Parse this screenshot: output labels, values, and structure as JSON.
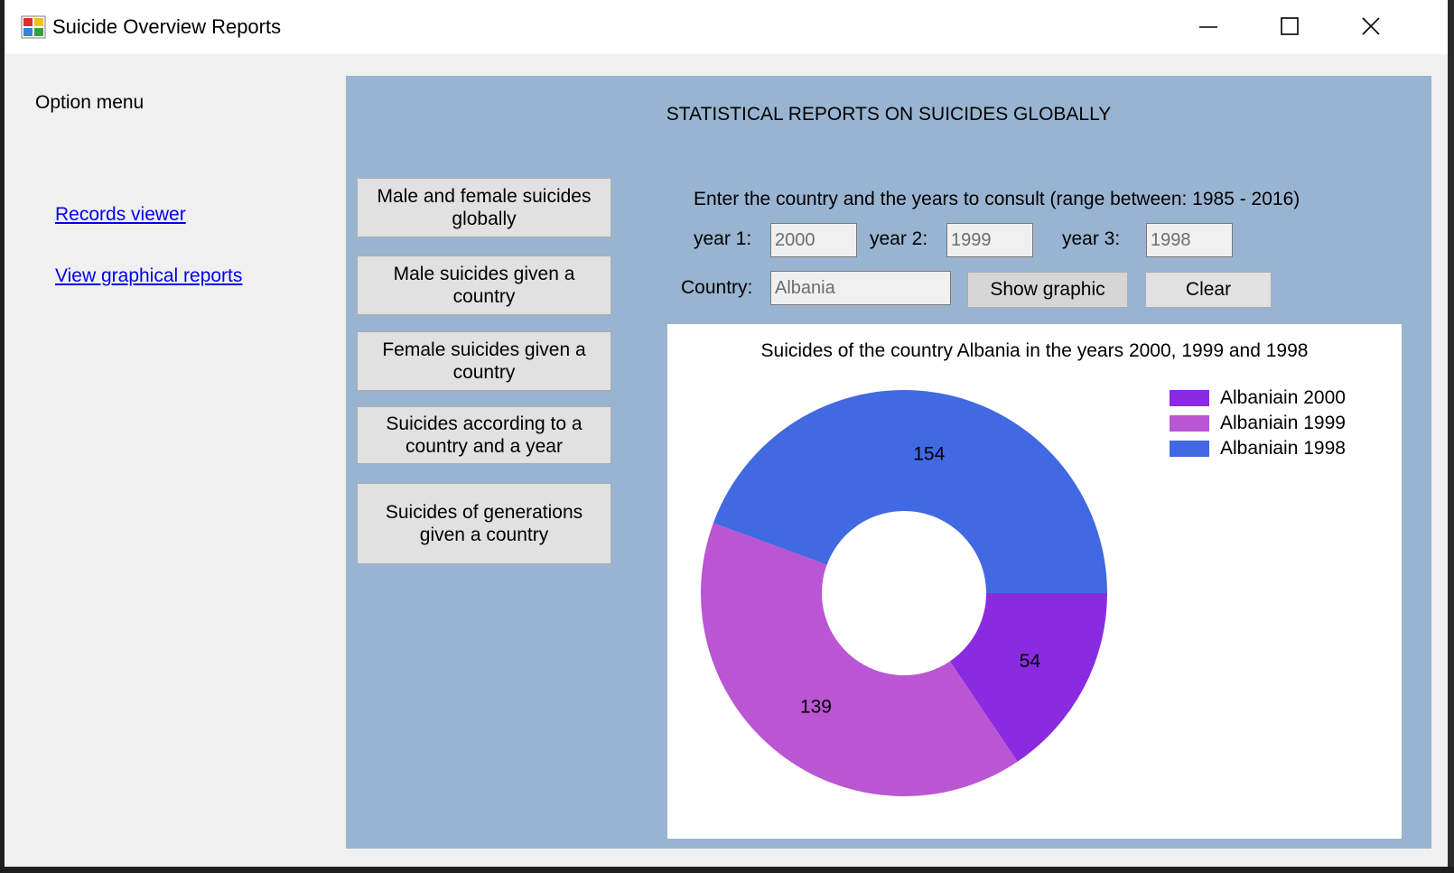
{
  "window": {
    "title": "Suicide Overview Reports"
  },
  "sidebar": {
    "heading": "Option menu",
    "links": [
      {
        "label": "Records viewer"
      },
      {
        "label": "View graphical reports"
      }
    ]
  },
  "panel": {
    "title": "STATISTICAL REPORTS ON SUICIDES GLOBALLY",
    "report_buttons": [
      {
        "label": "Male and female suicides globally"
      },
      {
        "label": "Male suicides given a country"
      },
      {
        "label": "Female suicides given a country"
      },
      {
        "label": "Suicides according to a country and a year"
      },
      {
        "label": "Suicides of generations given a country"
      }
    ],
    "form": {
      "instruction": "Enter the country and the years to consult (range between: 1985 - 2016)",
      "year1_label": "year 1:",
      "year1_value": "2000",
      "year2_label": "year 2:",
      "year2_value": "1999",
      "year3_label": "year 3:",
      "year3_value": "1998",
      "country_label": "Country:",
      "country_value": "Albania",
      "show_button": "Show graphic",
      "clear_button": "Clear"
    }
  },
  "colors": {
    "panel_bg": "#99b4d1",
    "accent": "#0000ee"
  },
  "chart_data": {
    "type": "pie",
    "donut": true,
    "title": "Suicides of the country Albania in the years 2000, 1999 and 1998",
    "legend_position": "top-right",
    "slices": [
      {
        "label": "Albaniain 2000",
        "value": 54,
        "color": "#8a2be2"
      },
      {
        "label": "Albaniain 1999",
        "value": 139,
        "color": "#ba55d3"
      },
      {
        "label": "Albaniain 1998",
        "value": 154,
        "color": "#4169e1"
      }
    ]
  }
}
